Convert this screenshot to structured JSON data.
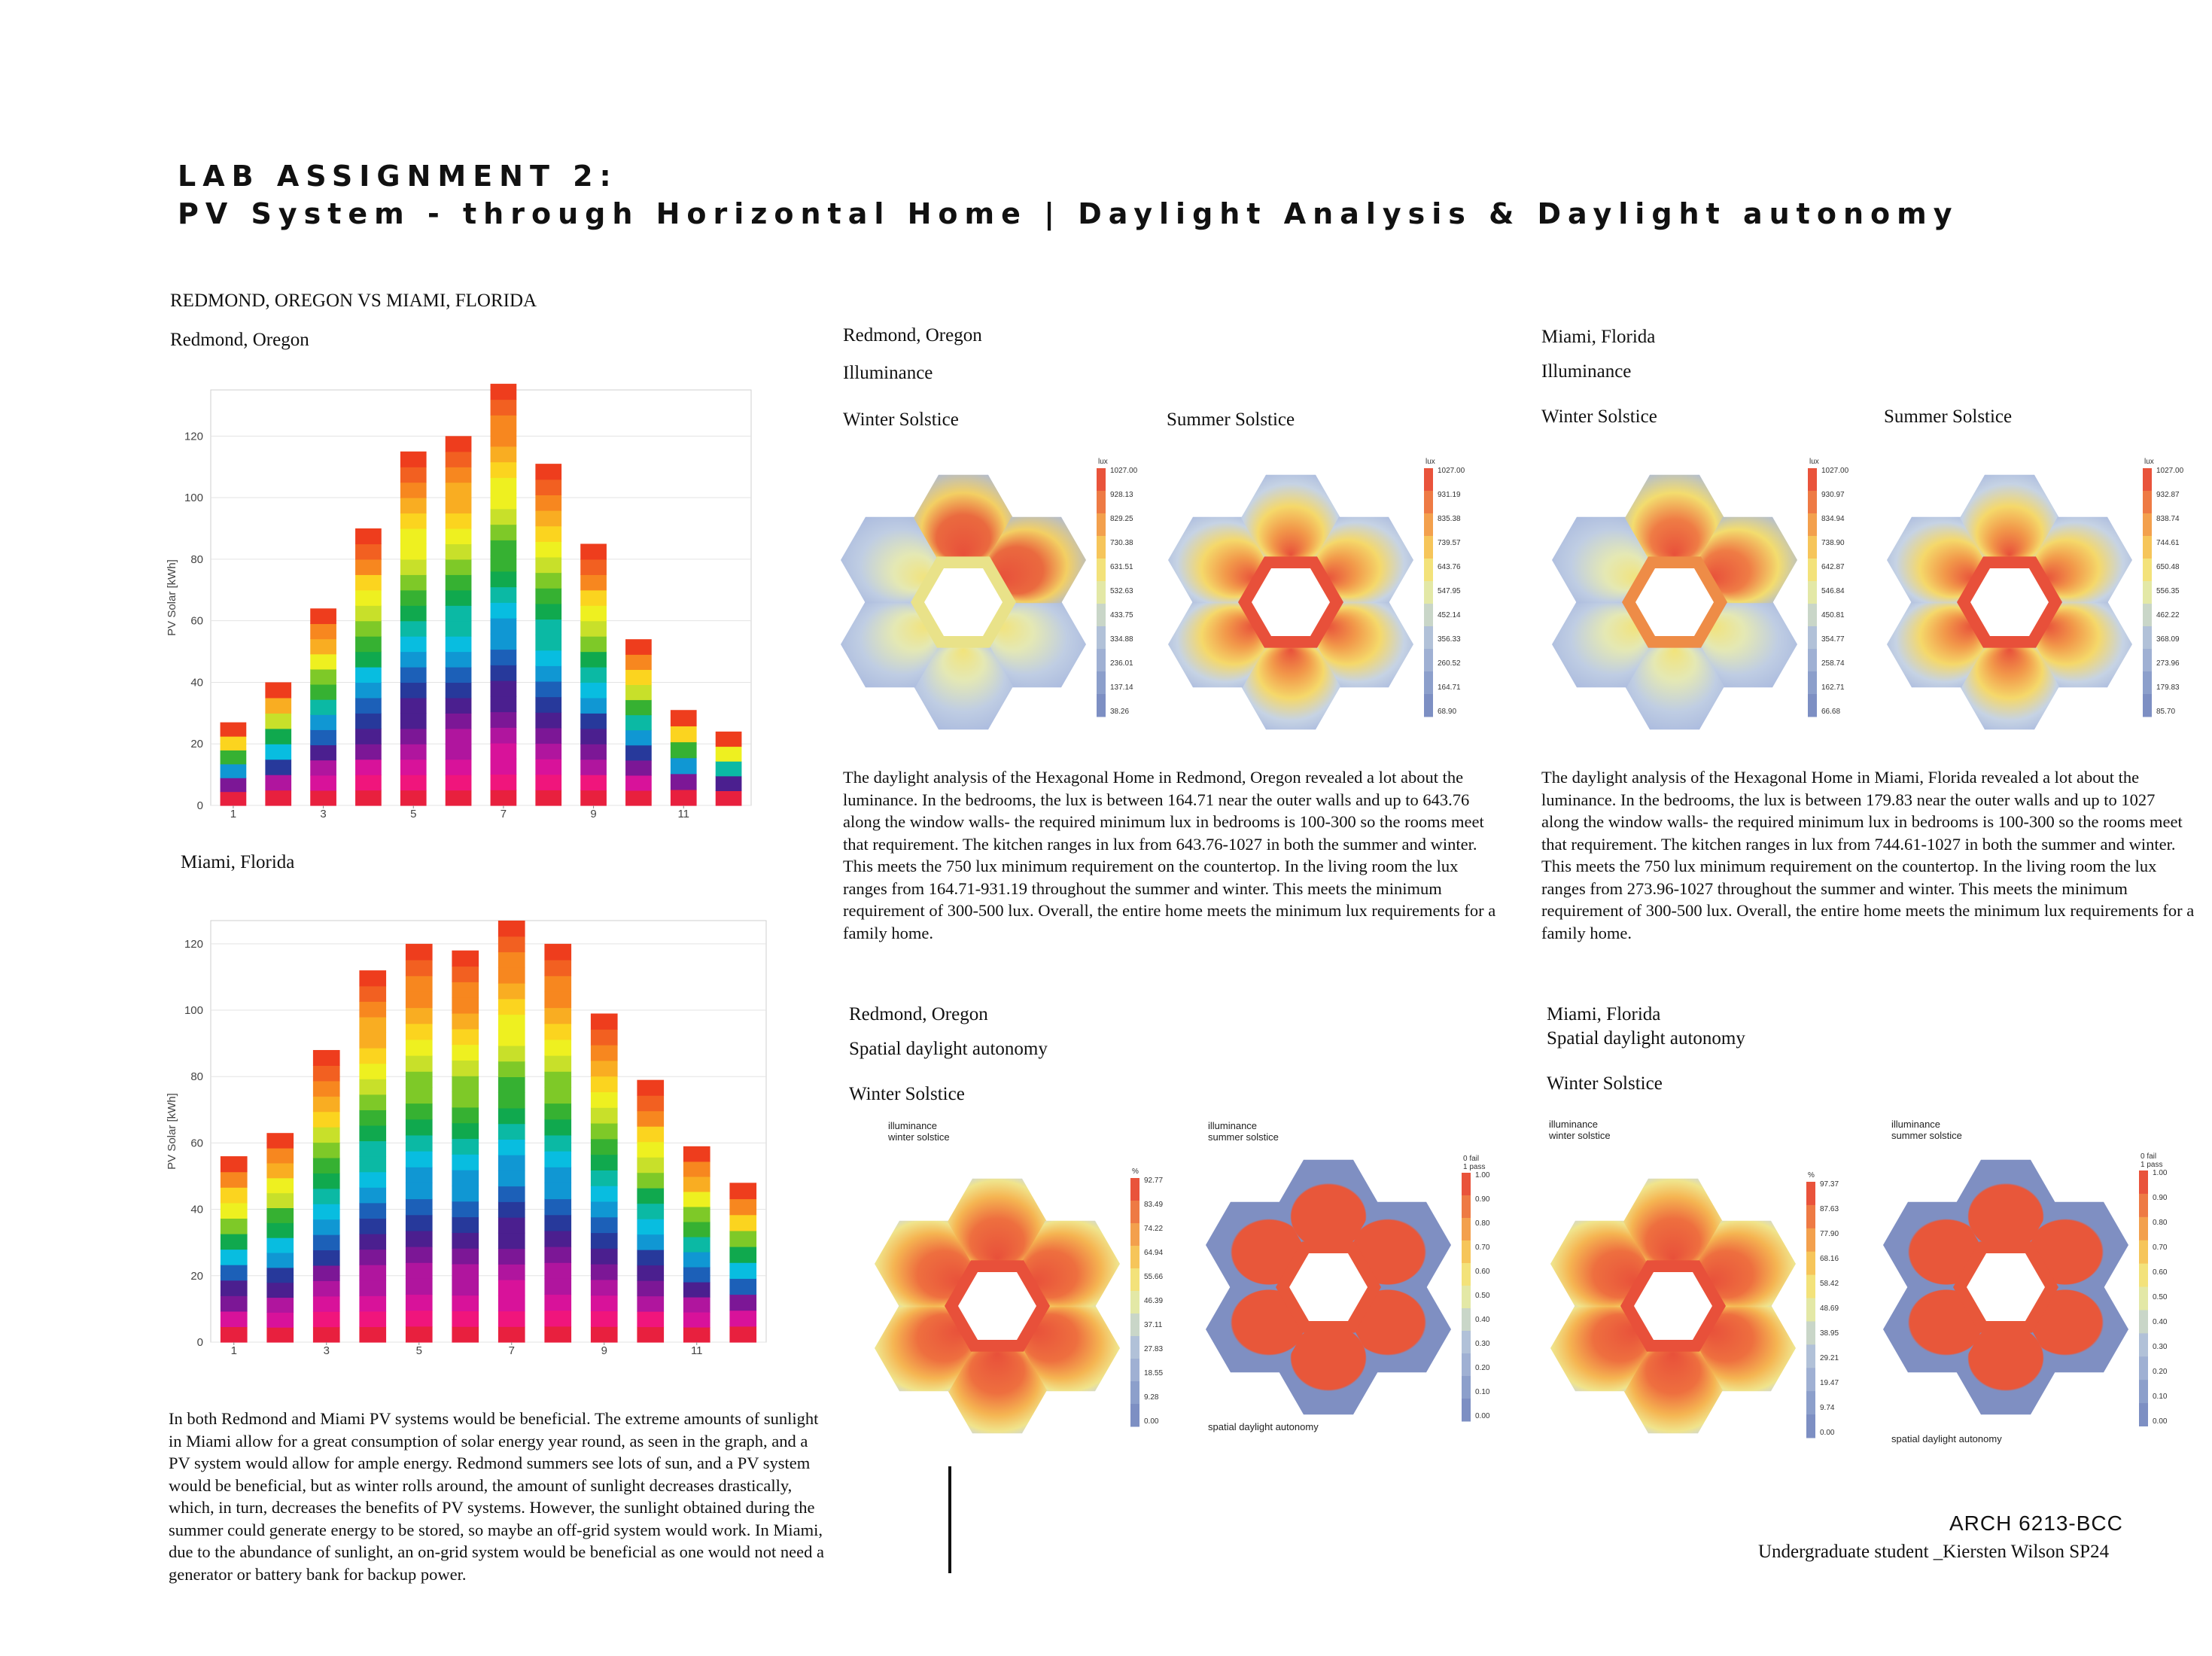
{
  "header": {
    "line1": "LAB ASSIGNMENT 2:",
    "line2": "PV System - through Horizontal Home | Daylight Analysis & Daylight autonomy"
  },
  "left": {
    "comparison_heading": "REDMOND, OREGON VS MIAMI, FLORIDA",
    "redmond_label": "Redmond, Oregon",
    "miami_label": "Miami, Florida",
    "summary_text": "In both Redmond and Miami PV systems would be beneficial. The extreme amounts of sunlight in Miami allow for a great consumption of solar energy year round, as seen in the graph, and a PV system would allow for ample energy. Redmond summers see lots of sun, and a PV system would be beneficial, but as winter rolls around, the amount of sunlight decreases drastically, which, in turn, decreases the benefits of PV systems. However, the sunlight obtained during the summer could generate energy to be stored, so maybe an off-grid system would work. In Miami, due to the abundance of sunlight, an on-grid system would be beneficial as one would not need a generator or battery bank for backup power."
  },
  "chart_data": [
    {
      "type": "bar",
      "ylabel": "PV Solar [kWh]",
      "ylim": [
        0,
        135
      ],
      "yticks": [
        0,
        20,
        40,
        60,
        80,
        100,
        120
      ],
      "x": [
        1,
        2,
        3,
        4,
        5,
        6,
        7,
        8,
        9,
        10,
        11,
        12
      ],
      "xtick_labels": [
        "1",
        "3",
        "5",
        "7",
        "9",
        "11"
      ],
      "values": [
        27,
        40,
        64,
        90,
        115,
        120,
        137,
        111,
        85,
        54,
        31,
        24
      ],
      "grid": true
    },
    {
      "type": "bar",
      "ylabel": "PV Solar [kWh]",
      "ylim": [
        0,
        127
      ],
      "yticks": [
        0,
        20,
        40,
        60,
        80,
        100,
        120
      ],
      "x": [
        1,
        2,
        3,
        4,
        5,
        6,
        7,
        8,
        9,
        10,
        11,
        12
      ],
      "xtick_labels": [
        "1",
        "3",
        "5",
        "7",
        "9",
        "11"
      ],
      "values": [
        56,
        63,
        88,
        112,
        120,
        118,
        127,
        120,
        99,
        79,
        59,
        48
      ],
      "grid": true
    }
  ],
  "redmond_illum": {
    "city": "Redmond, Oregon",
    "heading": "Illuminance",
    "winter": "Winter Solstice",
    "summer": "Summer Solstice",
    "text": "The daylight analysis of the Hexagonal Home in Redmond, Oregon revealed a lot about the luminance. In the bedrooms, the lux is between 164.71 near the outer walls and up to 643.76 along the window walls- the required minimum lux in bedrooms is 100-300 so the rooms meet that requirement. The kitchen ranges in lux from 643.76-1027 in both the summer and winter. This meets the 750 lux minimum requirement on the countertop. In the living room the lux ranges from 164.71-931.19 throughout the summer and winter. This meets the minimum requirement of 300-500 lux. Overall, the entire home meets the minimum lux requirements for a family home."
  },
  "miami_illum": {
    "city": "Miami, Florida",
    "heading": "Illuminance",
    "winter": "Winter Solstice",
    "summer": "Summer Solstice",
    "text": "The daylight analysis of the Hexagonal Home in Miami, Florida revealed a lot about the luminance. In the bedrooms, the lux is between 179.83 near the outer walls and up to 1027 along the window walls- the required minimum lux in bedrooms is 100-300 so the rooms meet that requirement. The kitchen ranges in lux from 744.61-1027 in both the summer and winter. This meets the 750 lux minimum requirement on the countertop. In the living room the lux ranges from 273.96-1027 throughout the summer and winter. This meets the minimum requirement of 300-500 lux. Overall, the entire home meets the minimum lux requirements for a family home."
  },
  "redmond_sda": {
    "city": "Redmond, Oregon",
    "heading": "Spatial daylight autonomy",
    "season": "Winter Solstice",
    "plot1_caption": "illuminance\nwinter solstice",
    "plot2_caption": "illuminance\nsummer solstice",
    "plot2_footer": "spatial daylight autonomy"
  },
  "miami_sda": {
    "city": "Miami, Florida",
    "heading": "Spatial daylight autonomy",
    "season": "Winter Solstice",
    "plot1_caption": "illuminance\nwinter solstice",
    "plot2_caption": "illuminance\nsummer solstice",
    "plot2_footer": "spatial daylight autonomy"
  },
  "legends": {
    "lux_unit": "lux",
    "percent_unit": "%",
    "pass_fail": "0 fail\n1 pass",
    "r_winter": [
      "1027.00",
      "928.13",
      "829.25",
      "730.38",
      "631.51",
      "532.63",
      "433.75",
      "334.88",
      "236.01",
      "137.14",
      "38.26"
    ],
    "r_summer": [
      "1027.00",
      "931.19",
      "835.38",
      "739.57",
      "643.76",
      "547.95",
      "452.14",
      "356.33",
      "260.52",
      "164.71",
      "68.90"
    ],
    "m_winter": [
      "1027.00",
      "930.97",
      "834.94",
      "738.90",
      "642.87",
      "546.84",
      "450.81",
      "354.77",
      "258.74",
      "162.71",
      "66.68"
    ],
    "m_summer": [
      "1027.00",
      "932.87",
      "838.74",
      "744.61",
      "650.48",
      "556.35",
      "462.22",
      "368.09",
      "273.96",
      "179.83",
      "85.70"
    ],
    "r_sda_pct": [
      "92.77",
      "83.49",
      "74.22",
      "64.94",
      "55.66",
      "46.39",
      "37.11",
      "27.83",
      "18.55",
      "9.28",
      "0.00"
    ],
    "m_sda_pct": [
      "97.37",
      "87.63",
      "77.90",
      "68.16",
      "58.42",
      "48.69",
      "38.95",
      "29.21",
      "19.47",
      "9.74",
      "0.00"
    ],
    "pass_scale": [
      "1.00",
      "0.90",
      "0.80",
      "0.70",
      "0.60",
      "0.50",
      "0.40",
      "0.30",
      "0.20",
      "0.10",
      "0.00"
    ]
  },
  "footer": {
    "course": "ARCH 6213-BCC",
    "student": "Undergraduate student _Kiersten Wilson SP24"
  }
}
